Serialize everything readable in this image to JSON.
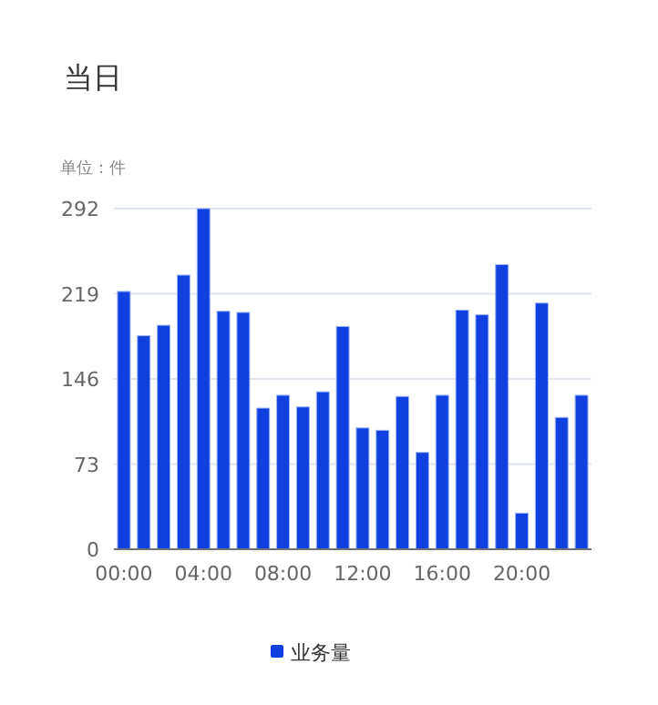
{
  "chart_data": {
    "type": "bar",
    "title": "当日",
    "subtitle": "单位：件",
    "categories": [
      "00:00",
      null,
      null,
      null,
      "04:00",
      null,
      null,
      null,
      "08:00",
      null,
      null,
      null,
      "12:00",
      null,
      null,
      null,
      "16:00",
      null,
      null,
      null,
      "20:00",
      null,
      null,
      null
    ],
    "series": [
      {
        "name": "业务量",
        "color": "#1040e0",
        "values": [
          221,
          183,
          192,
          235,
          292,
          204,
          203,
          121,
          132,
          122,
          135,
          191,
          104,
          102,
          131,
          83,
          132,
          205,
          201,
          244,
          31,
          211,
          113,
          132
        ]
      }
    ],
    "ylim": [
      0,
      292
    ],
    "yticks": [
      0,
      73,
      146,
      219,
      292
    ],
    "grid": "y",
    "legend": "bottom"
  }
}
